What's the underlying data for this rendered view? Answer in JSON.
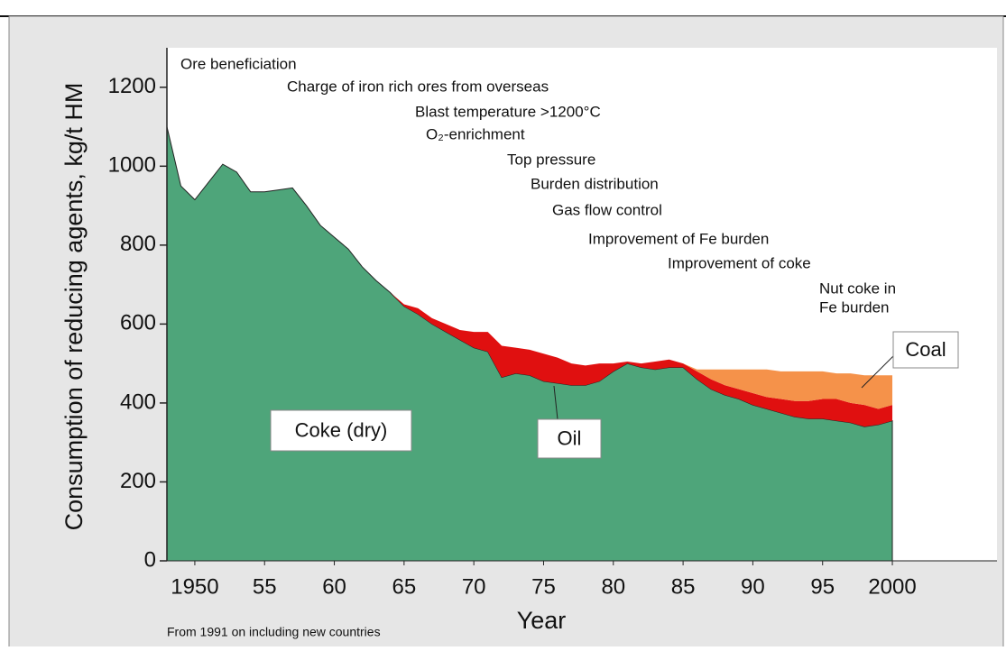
{
  "chart_data": {
    "type": "stacked-area",
    "y_label": "Consumption of reducing agents, kg/t HM",
    "x_label": "Year",
    "footnote": "From 1991 on including new countries",
    "annotations": [
      "Ore beneficiation",
      "Charge of iron rich ores from overseas",
      "Blast temperature >1200°C",
      "O₂-enrichment",
      "Top pressure",
      "Burden distribution",
      "Gas flow control",
      "Improvement of Fe burden",
      "Improvement of coke",
      "Nut coke in",
      "Fe burden"
    ],
    "x": [
      1948,
      1949,
      1950,
      1951,
      1952,
      1953,
      1954,
      1955,
      1956,
      1957,
      1958,
      1959,
      1960,
      1961,
      1962,
      1963,
      1964,
      1965,
      1966,
      1967,
      1968,
      1969,
      1970,
      1971,
      1972,
      1973,
      1974,
      1975,
      1976,
      1977,
      1978,
      1979,
      1980,
      1981,
      1982,
      1983,
      1984,
      1985,
      1986,
      1987,
      1988,
      1989,
      1990,
      1991,
      1992,
      1993,
      1994,
      1995,
      1996,
      1997,
      1998,
      1999,
      2000
    ],
    "series": [
      {
        "name": "Coke (dry)",
        "color": "#4ea57a",
        "values": [
          1100,
          950,
          915,
          960,
          1005,
          985,
          935,
          935,
          940,
          945,
          900,
          850,
          820,
          790,
          745,
          710,
          680,
          645,
          625,
          600,
          580,
          560,
          540,
          530,
          465,
          475,
          470,
          455,
          450,
          445,
          445,
          455,
          480,
          500,
          490,
          485,
          490,
          490,
          460,
          435,
          420,
          410,
          395,
          385,
          375,
          365,
          360,
          360,
          355,
          350,
          340,
          345,
          355
        ]
      },
      {
        "name": "Oil",
        "color": "#e01010",
        "values": [
          0,
          0,
          0,
          0,
          0,
          0,
          0,
          0,
          0,
          0,
          0,
          0,
          0,
          0,
          0,
          0,
          0,
          5,
          15,
          15,
          20,
          25,
          40,
          50,
          80,
          65,
          65,
          70,
          65,
          55,
          50,
          45,
          20,
          5,
          10,
          20,
          20,
          10,
          20,
          25,
          25,
          25,
          30,
          30,
          35,
          40,
          45,
          50,
          55,
          50,
          55,
          40,
          40
        ]
      },
      {
        "name": "Coal",
        "color": "#f5924a",
        "values": [
          0,
          0,
          0,
          0,
          0,
          0,
          0,
          0,
          0,
          0,
          0,
          0,
          0,
          0,
          0,
          0,
          0,
          0,
          0,
          0,
          0,
          0,
          0,
          0,
          0,
          0,
          0,
          0,
          0,
          0,
          0,
          0,
          0,
          0,
          0,
          0,
          0,
          0,
          5,
          25,
          40,
          50,
          60,
          70,
          70,
          75,
          75,
          70,
          65,
          75,
          75,
          85,
          75
        ]
      }
    ],
    "xlim": [
      1948,
      2007.5
    ],
    "ylim": [
      0,
      1300
    ],
    "xticks": [
      {
        "value": 1950,
        "label": "1950"
      },
      {
        "value": 1955,
        "label": "55"
      },
      {
        "value": 1960,
        "label": "60"
      },
      {
        "value": 1965,
        "label": "65"
      },
      {
        "value": 1970,
        "label": "70"
      },
      {
        "value": 1975,
        "label": "75"
      },
      {
        "value": 1980,
        "label": "80"
      },
      {
        "value": 1985,
        "label": "85"
      },
      {
        "value": 1990,
        "label": "90"
      },
      {
        "value": 1995,
        "label": "95"
      },
      {
        "value": 2000,
        "label": "2000"
      }
    ],
    "yticks": [
      0,
      200,
      400,
      600,
      800,
      1000,
      1200
    ]
  }
}
